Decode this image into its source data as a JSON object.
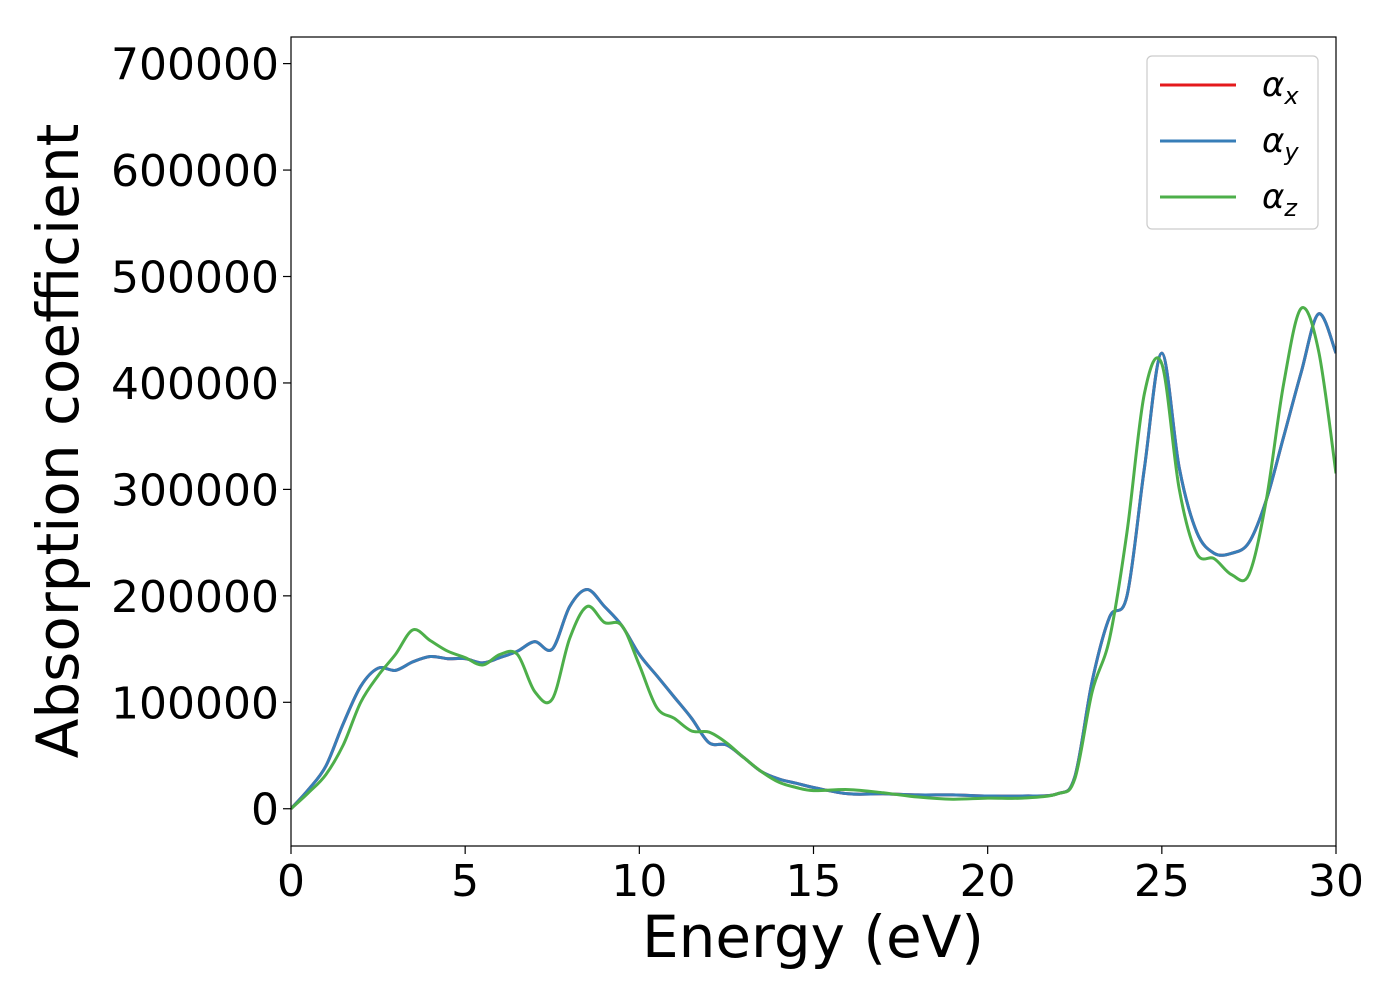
{
  "chart_data": {
    "type": "line",
    "title": "",
    "xlabel": "Energy (eV)",
    "ylabel": "Absorption coefficient",
    "xlim": [
      0,
      30
    ],
    "ylim": [
      -35000,
      725000
    ],
    "xticks": [
      0,
      5,
      10,
      15,
      20,
      25,
      30
    ],
    "yticks": [
      0,
      100000,
      200000,
      300000,
      400000,
      500000,
      600000,
      700000
    ],
    "grid": false,
    "legend_position": "top-right",
    "series": [
      {
        "name": "αx",
        "symbol": "α",
        "subscript": "x",
        "color": "#e41a1c",
        "x": [
          0,
          0.5,
          1,
          1.5,
          2,
          2.5,
          3,
          3.5,
          4,
          4.5,
          5,
          5.5,
          6,
          6.5,
          7,
          7.5,
          8,
          8.5,
          9,
          9.5,
          10,
          10.5,
          11,
          11.5,
          12,
          12.5,
          13,
          13.5,
          14,
          14.5,
          15,
          16,
          17,
          18,
          19,
          20,
          21,
          22,
          22.5,
          23,
          23.5,
          24,
          24.5,
          25,
          25.5,
          26,
          26.5,
          27,
          27.5,
          28,
          28.5,
          29,
          29.5,
          30
        ],
        "y": [
          0,
          18000,
          40000,
          80000,
          115000,
          132000,
          130000,
          138000,
          143000,
          141000,
          141000,
          137000,
          142000,
          148000,
          157000,
          150000,
          190000,
          206000,
          190000,
          172000,
          145000,
          125000,
          105000,
          85000,
          62000,
          60000,
          48000,
          35000,
          28000,
          24000,
          20000,
          14000,
          14000,
          13000,
          13000,
          12000,
          12000,
          14000,
          30000,
          120000,
          180000,
          200000,
          320000,
          428000,
          320000,
          260000,
          240000,
          240000,
          250000,
          290000,
          350000,
          410000,
          465000,
          428000
        ]
      },
      {
        "name": "αy",
        "symbol": "α",
        "subscript": "y",
        "color": "#377eb8",
        "x": [
          0,
          0.5,
          1,
          1.5,
          2,
          2.5,
          3,
          3.5,
          4,
          4.5,
          5,
          5.5,
          6,
          6.5,
          7,
          7.5,
          8,
          8.5,
          9,
          9.5,
          10,
          10.5,
          11,
          11.5,
          12,
          12.5,
          13,
          13.5,
          14,
          14.5,
          15,
          16,
          17,
          18,
          19,
          20,
          21,
          22,
          22.5,
          23,
          23.5,
          24,
          24.5,
          25,
          25.5,
          26,
          26.5,
          27,
          27.5,
          28,
          28.5,
          29,
          29.5,
          30
        ],
        "y": [
          0,
          18000,
          40000,
          80000,
          115000,
          132000,
          130000,
          138000,
          143000,
          141000,
          141000,
          137000,
          142000,
          148000,
          157000,
          150000,
          190000,
          206000,
          190000,
          172000,
          145000,
          125000,
          105000,
          85000,
          62000,
          60000,
          48000,
          35000,
          28000,
          24000,
          20000,
          14000,
          14000,
          13000,
          13000,
          12000,
          12000,
          14000,
          30000,
          120000,
          180000,
          200000,
          320000,
          428000,
          320000,
          260000,
          240000,
          240000,
          250000,
          290000,
          350000,
          410000,
          465000,
          428000
        ]
      },
      {
        "name": "αz",
        "symbol": "α",
        "subscript": "z",
        "color": "#4daf4a",
        "x": [
          0,
          0.5,
          1,
          1.5,
          2,
          2.5,
          3,
          3.5,
          4,
          4.5,
          5,
          5.5,
          6,
          6.5,
          7,
          7.5,
          8,
          8.5,
          9,
          9.5,
          10,
          10.5,
          11,
          11.5,
          12,
          12.5,
          13,
          13.5,
          14,
          14.5,
          15,
          16,
          17,
          18,
          19,
          20,
          21,
          22,
          22.5,
          23,
          23.5,
          24,
          24.5,
          25,
          25.5,
          26,
          26.5,
          27,
          27.5,
          28,
          28.5,
          29,
          29.5,
          30
        ],
        "y": [
          0,
          15000,
          32000,
          60000,
          100000,
          125000,
          145000,
          168000,
          158000,
          148000,
          142000,
          135000,
          145000,
          145000,
          110000,
          103000,
          160000,
          190000,
          175000,
          172000,
          135000,
          95000,
          85000,
          73000,
          72000,
          62000,
          48000,
          35000,
          25000,
          20000,
          17000,
          18000,
          15000,
          11000,
          9000,
          10000,
          10000,
          14000,
          28000,
          110000,
          160000,
          260000,
          390000,
          418000,
          300000,
          240000,
          235000,
          220000,
          220000,
          290000,
          400000,
          470000,
          430000,
          315000
        ]
      }
    ]
  }
}
